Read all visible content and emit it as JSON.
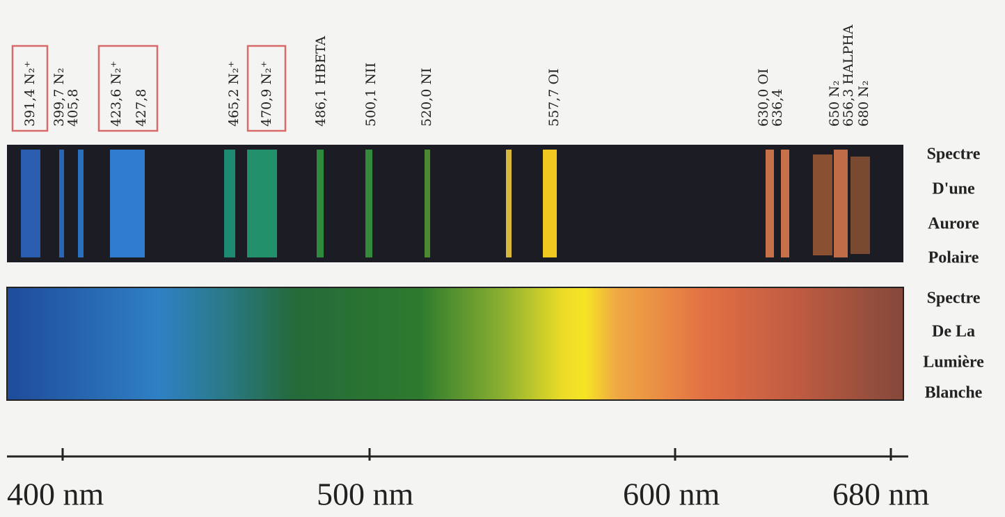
{
  "emission_labels": [
    {
      "lines": [
        "391,4 N₂⁺"
      ],
      "boxed": true
    },
    {
      "lines": [
        "399,7 N₂",
        "405,8"
      ],
      "boxed": false
    },
    {
      "lines": [
        "423,6 N₂⁺",
        "427,8"
      ],
      "boxed": true
    },
    {
      "lines": [
        "465,2 N₂⁺"
      ],
      "boxed": false
    },
    {
      "lines": [
        "470,9 N₂⁺"
      ],
      "boxed": true
    },
    {
      "lines": [
        "486,1 HBETA"
      ],
      "boxed": false
    },
    {
      "lines": [
        "500,1 NII"
      ],
      "boxed": false
    },
    {
      "lines": [
        "520,0 NI"
      ],
      "boxed": false
    },
    {
      "lines": [
        "557,7 OI"
      ],
      "boxed": false
    },
    {
      "lines": [
        "630,0 OI",
        "636,4"
      ],
      "boxed": false
    },
    {
      "lines": [
        "650 N₂",
        "656,3 HALPHA",
        "680 N₂"
      ],
      "boxed": false
    }
  ],
  "aurora_caption": [
    "Spectre",
    "D'une",
    "Aurore",
    "Polaire"
  ],
  "white_light_caption": [
    "Spectre",
    "De La",
    "Lumière",
    "Blanche"
  ],
  "axis_labels": [
    "400 nm",
    "500 nm",
    "600 nm",
    "680 nm"
  ]
}
